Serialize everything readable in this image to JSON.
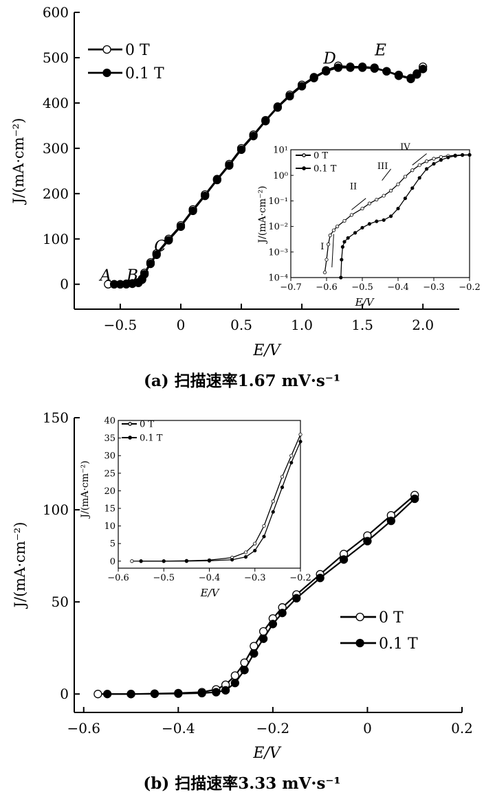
{
  "chart_data": [
    {
      "type": "line",
      "xlabel": "E/V",
      "ylabel": "J/(mA·cm⁻²)",
      "xlim": [
        -0.88,
        2.3
      ],
      "ylim": [
        -55,
        600
      ],
      "xticks": [
        "−0.5",
        "0",
        "0.5",
        "1.0",
        "1.5",
        "2.0"
      ],
      "xtick_values": [
        -0.5,
        0,
        0.5,
        1.0,
        1.5,
        2.0
      ],
      "yticks": [
        "0",
        "100",
        "200",
        "300",
        "400",
        "500",
        "600"
      ],
      "ytick_values": [
        0,
        100,
        200,
        300,
        400,
        500,
        600
      ],
      "legend": "top-left",
      "series": [
        {
          "name": "0 T",
          "marker": "open-circle",
          "x": [
            -0.6,
            -0.55,
            -0.5,
            -0.45,
            -0.4,
            -0.35,
            -0.32,
            -0.3,
            -0.25,
            -0.2,
            -0.1,
            0,
            0.1,
            0.2,
            0.3,
            0.4,
            0.5,
            0.6,
            0.7,
            0.8,
            0.9,
            1.0,
            1.1,
            1.2,
            1.3,
            1.4,
            1.5,
            1.6,
            1.7,
            1.8,
            1.9,
            1.95,
            2.0
          ],
          "y": [
            0,
            0,
            0,
            1,
            2,
            4,
            12,
            25,
            48,
            68,
            100,
            130,
            165,
            198,
            232,
            265,
            300,
            330,
            362,
            392,
            418,
            440,
            457,
            472,
            482,
            480,
            480,
            478,
            470,
            462,
            455,
            465,
            480
          ]
        },
        {
          "name": "0.1 T",
          "marker": "filled-circle",
          "x": [
            -0.55,
            -0.5,
            -0.45,
            -0.4,
            -0.35,
            -0.32,
            -0.3,
            -0.25,
            -0.2,
            -0.1,
            0,
            0.1,
            0.2,
            0.3,
            0.4,
            0.5,
            0.6,
            0.7,
            0.8,
            0.9,
            1.0,
            1.1,
            1.2,
            1.3,
            1.4,
            1.5,
            1.6,
            1.7,
            1.8,
            1.9,
            1.95,
            2.0
          ],
          "y": [
            0,
            0,
            0,
            1,
            3,
            10,
            22,
            45,
            65,
            97,
            127,
            162,
            195,
            230,
            262,
            297,
            327,
            360,
            390,
            415,
            437,
            455,
            470,
            478,
            478,
            478,
            476,
            470,
            460,
            453,
            463,
            475
          ]
        }
      ],
      "annotations": [
        "A",
        "B",
        "C",
        "D",
        "E"
      ],
      "caption": "(a) 扫描速率1.67 mV·s⁻¹"
    },
    {
      "type": "line",
      "inset_of": 0,
      "xlabel": "E/V",
      "ylabel": "J/(mA·cm⁻²)",
      "xlim": [
        -0.7,
        -0.2
      ],
      "yscale": "log",
      "ylim_exp": [
        -4,
        1
      ],
      "xticks": [
        "−0.7",
        "−0.6",
        "−0.5",
        "−0.4",
        "−0.3",
        "−0.2"
      ],
      "xtick_values": [
        -0.7,
        -0.6,
        -0.5,
        -0.4,
        -0.3,
        -0.2
      ],
      "yticks": [
        "10⁻⁴",
        "10⁻³",
        "10⁻²",
        "10⁻¹",
        "10⁰",
        "10¹"
      ],
      "ytick_exps": [
        -4,
        -3,
        -2,
        -1,
        0,
        1
      ],
      "legend": "top-left",
      "series": [
        {
          "name": "0 T",
          "marker": "open-circle",
          "x": [
            -0.605,
            -0.6,
            -0.595,
            -0.59,
            -0.58,
            -0.57,
            -0.55,
            -0.53,
            -0.5,
            -0.48,
            -0.46,
            -0.44,
            -0.42,
            -0.4,
            -0.38,
            -0.36,
            -0.34,
            -0.32,
            -0.3,
            -0.28,
            -0.26,
            -0.24,
            -0.22,
            -0.2
          ],
          "log10y": [
            -3.8,
            -3.3,
            -2.7,
            -2.35,
            -2.15,
            -2.0,
            -1.78,
            -1.55,
            -1.3,
            -1.1,
            -0.95,
            -0.8,
            -0.6,
            -0.35,
            -0.05,
            0.2,
            0.4,
            0.55,
            0.65,
            0.72,
            0.76,
            0.78,
            0.8,
            0.8
          ]
        },
        {
          "name": "0.1 T",
          "marker": "filled-circle",
          "x": [
            -0.56,
            -0.558,
            -0.555,
            -0.55,
            -0.54,
            -0.52,
            -0.5,
            -0.48,
            -0.46,
            -0.44,
            -0.42,
            -0.4,
            -0.38,
            -0.36,
            -0.34,
            -0.32,
            -0.3,
            -0.28,
            -0.26,
            -0.24,
            -0.22,
            -0.2
          ],
          "log10y": [
            -4.0,
            -3.3,
            -2.8,
            -2.6,
            -2.45,
            -2.25,
            -2.05,
            -1.9,
            -1.8,
            -1.75,
            -1.6,
            -1.3,
            -0.9,
            -0.5,
            -0.1,
            0.25,
            0.45,
            0.6,
            0.7,
            0.76,
            0.79,
            0.8
          ]
        }
      ],
      "annotations": [
        "I",
        "II",
        "III",
        "IV"
      ]
    },
    {
      "type": "line",
      "xlabel": "E/V",
      "ylabel": "J/(mA·cm⁻²)",
      "xlim": [
        -0.62,
        0.2
      ],
      "ylim": [
        -10,
        150
      ],
      "xticks": [
        "−0.6",
        "−0.4",
        "−0.2",
        "0",
        "0.2"
      ],
      "xtick_values": [
        -0.6,
        -0.4,
        -0.2,
        0,
        0.2
      ],
      "yticks": [
        "0",
        "50",
        "100",
        "150"
      ],
      "ytick_values": [
        0,
        50,
        100,
        150
      ],
      "legend": "bottom-right",
      "series": [
        {
          "name": "0 T",
          "marker": "open-circle",
          "x": [
            -0.57,
            -0.5,
            -0.45,
            -0.4,
            -0.35,
            -0.32,
            -0.3,
            -0.28,
            -0.26,
            -0.24,
            -0.22,
            -0.2,
            -0.18,
            -0.15,
            -0.1,
            -0.05,
            0,
            0.05,
            0.1
          ],
          "y": [
            0,
            0,
            0.2,
            0.5,
            1,
            2.5,
            5,
            10,
            17,
            26,
            34,
            41,
            47,
            54,
            65,
            76,
            86,
            97,
            108
          ]
        },
        {
          "name": "0.1 T",
          "marker": "filled-circle",
          "x": [
            -0.55,
            -0.5,
            -0.45,
            -0.4,
            -0.35,
            -0.32,
            -0.3,
            -0.28,
            -0.26,
            -0.24,
            -0.22,
            -0.2,
            -0.18,
            -0.15,
            -0.1,
            -0.05,
            0,
            0.05,
            0.1
          ],
          "y": [
            0,
            0,
            0.1,
            0.2,
            0.5,
            1,
            2,
            6,
            13,
            22,
            30,
            38,
            44,
            52,
            63,
            73,
            83,
            94,
            106
          ]
        }
      ],
      "caption": "(b) 扫描速率3.33 mV·s⁻¹"
    },
    {
      "type": "line",
      "inset_of": 2,
      "xlabel": "E/V",
      "ylabel": "J/(mA·cm⁻²)",
      "xlim": [
        -0.6,
        -0.2
      ],
      "ylim": [
        -2,
        40
      ],
      "xticks": [
        "−0.6",
        "−0.5",
        "−0.4",
        "−0.3",
        "−0.2"
      ],
      "xtick_values": [
        -0.6,
        -0.5,
        -0.4,
        -0.3,
        -0.2
      ],
      "yticks": [
        "0",
        "5",
        "10",
        "15",
        "20",
        "25",
        "30",
        "35",
        "40"
      ],
      "ytick_values": [
        0,
        5,
        10,
        15,
        20,
        25,
        30,
        35,
        40
      ],
      "legend": "top-left",
      "series": [
        {
          "name": "0 T",
          "marker": "open-circle",
          "x": [
            -0.57,
            -0.55,
            -0.5,
            -0.45,
            -0.4,
            -0.35,
            -0.32,
            -0.3,
            -0.28,
            -0.26,
            -0.24,
            -0.22,
            -0.2
          ],
          "y": [
            0,
            0,
            0,
            0.1,
            0.3,
            1,
            2.5,
            5,
            10,
            17,
            24,
            30,
            36
          ]
        },
        {
          "name": "0.1 T",
          "marker": "filled-circle",
          "x": [
            -0.55,
            -0.5,
            -0.45,
            -0.4,
            -0.35,
            -0.32,
            -0.3,
            -0.28,
            -0.26,
            -0.24,
            -0.22,
            -0.2
          ],
          "y": [
            0,
            0,
            0,
            0.1,
            0.4,
            1.2,
            3,
            7,
            14,
            21,
            28,
            34
          ]
        }
      ]
    }
  ]
}
